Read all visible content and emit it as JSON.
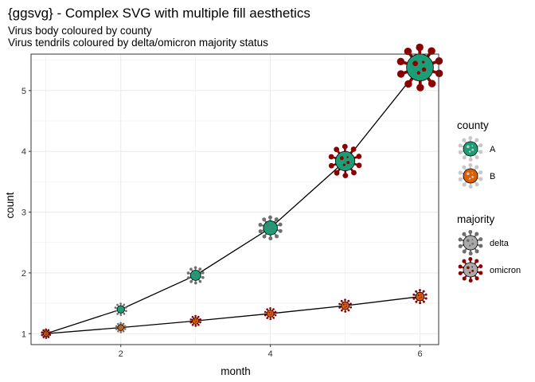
{
  "chart_data": {
    "type": "line",
    "title": "{ggsvg} - Complex SVG with multiple fill aesthetics",
    "subtitle_lines": [
      "Virus body coloured by county",
      "Virus tendrils coloured by delta/omicron majority status"
    ],
    "xlabel": "month",
    "ylabel": "count",
    "xlim": [
      0.8,
      6.25
    ],
    "ylim": [
      0.82,
      5.6
    ],
    "x_ticks": [
      2,
      4,
      6
    ],
    "y_ticks": [
      1,
      2,
      3,
      4,
      5
    ],
    "grid": true,
    "series": [
      {
        "county": "A",
        "points": [
          {
            "x": 1,
            "y": 1.0,
            "majority": "delta",
            "size": 1.0
          },
          {
            "x": 2,
            "y": 1.4,
            "majority": "delta",
            "size": 1.4
          },
          {
            "x": 3,
            "y": 1.96,
            "majority": "delta",
            "size": 1.96
          },
          {
            "x": 4,
            "y": 2.74,
            "majority": "delta",
            "size": 2.74
          },
          {
            "x": 5,
            "y": 3.84,
            "majority": "omicron",
            "size": 3.84
          },
          {
            "x": 6,
            "y": 5.38,
            "majority": "omicron",
            "size": 5.38
          }
        ]
      },
      {
        "county": "B",
        "points": [
          {
            "x": 1,
            "y": 1.0,
            "majority": "omicron",
            "size": 1.0
          },
          {
            "x": 2,
            "y": 1.1,
            "majority": "delta",
            "size": 1.1
          },
          {
            "x": 3,
            "y": 1.21,
            "majority": "omicron",
            "size": 1.21
          },
          {
            "x": 4,
            "y": 1.33,
            "majority": "omicron",
            "size": 1.33
          },
          {
            "x": 5,
            "y": 1.46,
            "majority": "omicron",
            "size": 1.46
          },
          {
            "x": 6,
            "y": 1.61,
            "majority": "omicron",
            "size": 1.61
          }
        ]
      }
    ],
    "legend_placement": "right",
    "legends": [
      {
        "title": "county",
        "entries": [
          {
            "label": "A",
            "body": "#1b9e77",
            "tendril": "#c8c8c8"
          },
          {
            "label": "B",
            "body": "#d95f02",
            "tendril": "#c8c8c8"
          }
        ]
      },
      {
        "title": "majority",
        "entries": [
          {
            "label": "delta",
            "body": "#a9a9a9",
            "tendril": "#6e6e6e"
          },
          {
            "label": "omicron",
            "body": "#a9a9a9",
            "tendril": "#8b0000"
          }
        ]
      }
    ],
    "colors": {
      "county_A": "#1b9e77",
      "county_B": "#d95f02",
      "delta": "#6e6e6e",
      "omicron": "#8b0000",
      "panel_border": "#333333",
      "grid": "#ebebeb"
    }
  }
}
